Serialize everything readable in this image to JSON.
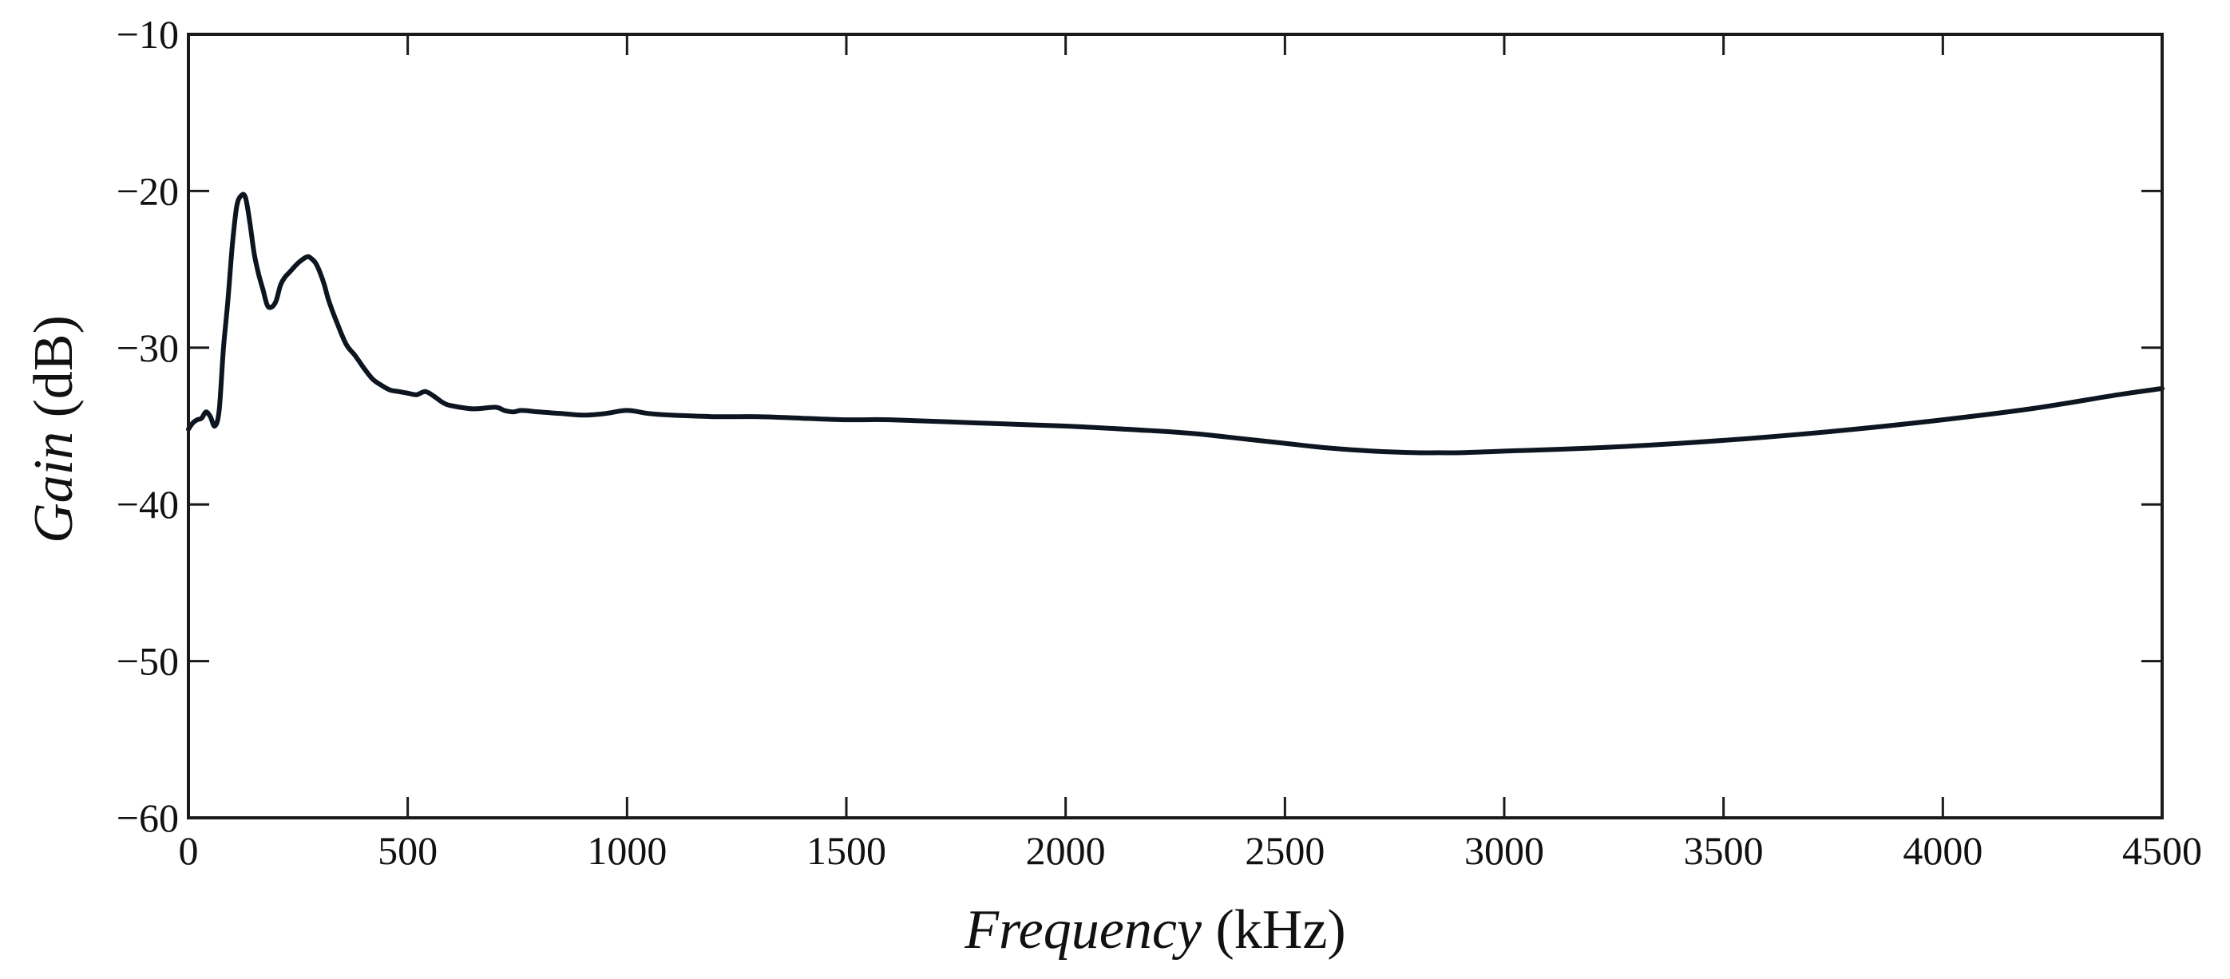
{
  "chart_data": {
    "type": "line",
    "title": "",
    "xlabel_italic": "Frequency",
    "xlabel_unit": "(kHz)",
    "ylabel_italic": "Gain",
    "ylabel_unit": "(dB)",
    "xlim": [
      0,
      4500
    ],
    "ylim": [
      -60,
      -10
    ],
    "xticks": [
      0,
      500,
      1000,
      1500,
      2000,
      2500,
      3000,
      3500,
      4000,
      4500
    ],
    "yticks": [
      -60,
      -50,
      -40,
      -30,
      -20,
      -10
    ],
    "grid": false,
    "legend": "none",
    "line_color": "#0d1520",
    "series": [
      {
        "name": "Gain",
        "x": [
          0,
          10,
          20,
          30,
          40,
          50,
          60,
          70,
          80,
          90,
          100,
          110,
          120,
          130,
          140,
          150,
          160,
          170,
          180,
          190,
          200,
          210,
          220,
          230,
          250,
          270,
          280,
          290,
          300,
          310,
          320,
          340,
          360,
          380,
          400,
          420,
          440,
          460,
          480,
          500,
          520,
          540,
          560,
          580,
          600,
          650,
          700,
          720,
          740,
          760,
          800,
          850,
          900,
          950,
          1000,
          1050,
          1100,
          1200,
          1300,
          1400,
          1500,
          1600,
          1800,
          2000,
          2200,
          2300,
          2400,
          2500,
          2600,
          2700,
          2800,
          2850,
          2900,
          3000,
          3200,
          3400,
          3600,
          3800,
          4000,
          4200,
          4400,
          4500
        ],
        "y": [
          -35.2,
          -34.8,
          -34.6,
          -34.5,
          -34.1,
          -34.4,
          -35.0,
          -34.0,
          -30.0,
          -27.0,
          -23.5,
          -21.0,
          -20.3,
          -20.4,
          -22.0,
          -24.0,
          -25.3,
          -26.3,
          -27.3,
          -27.4,
          -27.0,
          -26.0,
          -25.5,
          -25.2,
          -24.6,
          -24.2,
          -24.3,
          -24.6,
          -25.2,
          -26.0,
          -27.0,
          -28.5,
          -29.8,
          -30.5,
          -31.3,
          -32.0,
          -32.4,
          -32.7,
          -32.8,
          -32.9,
          -33.0,
          -32.8,
          -33.1,
          -33.5,
          -33.7,
          -33.9,
          -33.8,
          -34.0,
          -34.1,
          -34.0,
          -34.1,
          -34.2,
          -34.3,
          -34.2,
          -34.0,
          -34.2,
          -34.3,
          -34.4,
          -34.4,
          -34.5,
          -34.6,
          -34.6,
          -34.8,
          -35.0,
          -35.3,
          -35.5,
          -35.8,
          -36.1,
          -36.4,
          -36.6,
          -36.7,
          -36.7,
          -36.7,
          -36.6,
          -36.4,
          -36.1,
          -35.7,
          -35.2,
          -34.6,
          -33.9,
          -33.0,
          -32.6
        ]
      }
    ]
  }
}
